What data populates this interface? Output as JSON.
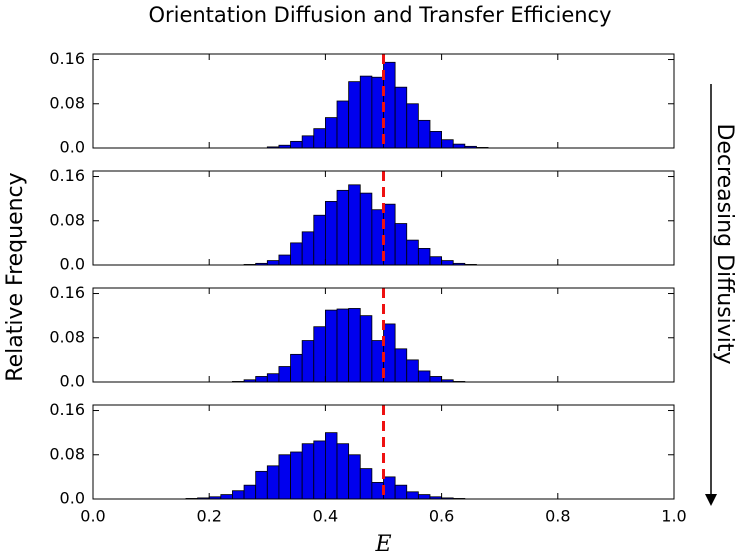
{
  "title": "Orientation Diffusion and Transfer Efficiency",
  "ylabel": "Relative Frequency",
  "annotation": "Decreasing Diffusivity",
  "chart_data": [
    {
      "type": "histogram",
      "color": "#0000ee",
      "edge_color": "#000000",
      "bins": [
        0.14,
        0.16,
        0.18,
        0.2,
        0.22,
        0.24,
        0.26,
        0.28,
        0.3,
        0.32,
        0.34,
        0.36,
        0.38,
        0.4,
        0.42,
        0.44,
        0.46,
        0.48,
        0.5,
        0.52,
        0.54,
        0.56,
        0.58,
        0.6,
        0.62,
        0.64,
        0.66,
        0.68,
        0.7
      ],
      "values": [
        0,
        0,
        0,
        0,
        0,
        0,
        0,
        0,
        0.002,
        0.005,
        0.012,
        0.022,
        0.035,
        0.055,
        0.085,
        0.12,
        0.13,
        0.128,
        0.155,
        0.11,
        0.08,
        0.05,
        0.03,
        0.015,
        0.007,
        0.003,
        0.001,
        0
      ],
      "xlim": [
        0,
        1
      ],
      "xticks": [
        0,
        0.2,
        0.4,
        0.6,
        0.8,
        1
      ],
      "ylim": [
        0,
        0.17
      ],
      "yticks": [
        {
          "value": 0,
          "label": "0.0"
        },
        0.08,
        0.16
      ],
      "vline": 0.5,
      "vline_color": "#ee1111"
    },
    {
      "type": "histogram",
      "color": "#0000ee",
      "edge_color": "#000000",
      "bins": [
        0.14,
        0.16,
        0.18,
        0.2,
        0.22,
        0.24,
        0.26,
        0.28,
        0.3,
        0.32,
        0.34,
        0.36,
        0.38,
        0.4,
        0.42,
        0.44,
        0.46,
        0.48,
        0.5,
        0.52,
        0.54,
        0.56,
        0.58,
        0.6,
        0.62,
        0.64,
        0.66,
        0.68,
        0.7
      ],
      "values": [
        0,
        0,
        0,
        0,
        0,
        0,
        0.001,
        0.003,
        0.008,
        0.018,
        0.04,
        0.06,
        0.09,
        0.115,
        0.135,
        0.145,
        0.13,
        0.1,
        0.11,
        0.075,
        0.045,
        0.03,
        0.015,
        0.008,
        0.003,
        0.001,
        0,
        0
      ],
      "xlim": [
        0,
        1
      ],
      "xticks": [
        0,
        0.2,
        0.4,
        0.6,
        0.8,
        1
      ],
      "ylim": [
        0,
        0.17
      ],
      "yticks": [
        {
          "value": 0,
          "label": "0.0"
        },
        0.08,
        0.16
      ],
      "vline": 0.5,
      "vline_color": "#ee1111"
    },
    {
      "type": "histogram",
      "color": "#0000ee",
      "edge_color": "#000000",
      "bins": [
        0.14,
        0.16,
        0.18,
        0.2,
        0.22,
        0.24,
        0.26,
        0.28,
        0.3,
        0.32,
        0.34,
        0.36,
        0.38,
        0.4,
        0.42,
        0.44,
        0.46,
        0.48,
        0.5,
        0.52,
        0.54,
        0.56,
        0.58,
        0.6,
        0.62,
        0.64,
        0.66,
        0.68,
        0.7
      ],
      "values": [
        0,
        0,
        0,
        0,
        0,
        0.001,
        0.004,
        0.01,
        0.015,
        0.028,
        0.05,
        0.075,
        0.1,
        0.13,
        0.132,
        0.133,
        0.12,
        0.075,
        0.105,
        0.06,
        0.04,
        0.02,
        0.01,
        0.004,
        0.001,
        0,
        0,
        0
      ],
      "xlim": [
        0,
        1
      ],
      "xticks": [
        0,
        0.2,
        0.4,
        0.6,
        0.8,
        1
      ],
      "ylim": [
        0,
        0.17
      ],
      "yticks": [
        {
          "value": 0,
          "label": "0.0"
        },
        0.08,
        0.16
      ],
      "vline": 0.5,
      "vline_color": "#ee1111"
    },
    {
      "type": "histogram",
      "color": "#0000ee",
      "edge_color": "#000000",
      "bins": [
        0.14,
        0.16,
        0.18,
        0.2,
        0.22,
        0.24,
        0.26,
        0.28,
        0.3,
        0.32,
        0.34,
        0.36,
        0.38,
        0.4,
        0.42,
        0.44,
        0.46,
        0.48,
        0.5,
        0.52,
        0.54,
        0.56,
        0.58,
        0.6,
        0.62,
        0.64,
        0.66,
        0.68,
        0.7
      ],
      "values": [
        0,
        0.001,
        0.002,
        0.004,
        0.008,
        0.015,
        0.025,
        0.05,
        0.06,
        0.08,
        0.085,
        0.1,
        0.105,
        0.12,
        0.1,
        0.08,
        0.055,
        0.03,
        0.04,
        0.025,
        0.013,
        0.008,
        0.004,
        0.002,
        0.001,
        0,
        0,
        0
      ],
      "xlim": [
        0,
        1
      ],
      "xticks": [
        {
          "value": 0,
          "label": "0.0"
        },
        0.2,
        0.4,
        0.6,
        0.8,
        {
          "value": 1,
          "label": "1.0"
        }
      ],
      "xlabel": "E",
      "ylim": [
        0,
        0.17
      ],
      "yticks": [
        {
          "value": 0,
          "label": "0.0"
        },
        0.08,
        0.16
      ],
      "vline": 0.5,
      "vline_color": "#ee1111"
    }
  ]
}
